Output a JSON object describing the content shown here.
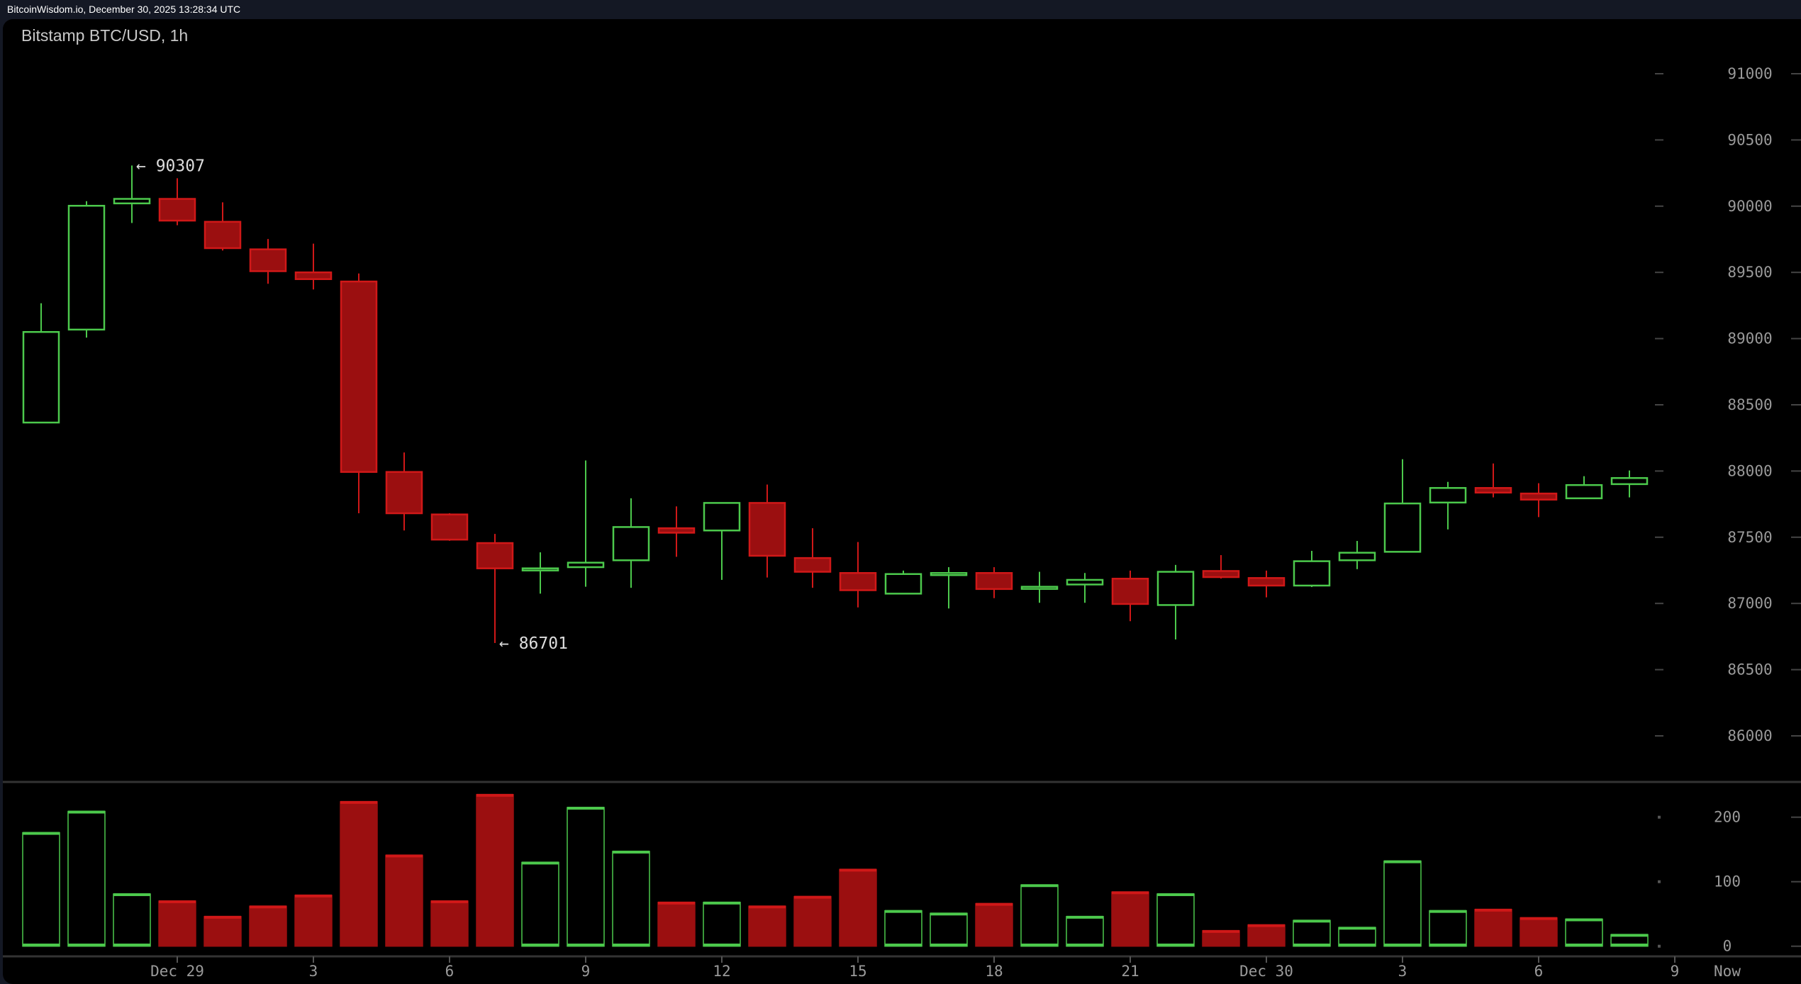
{
  "topbar": {
    "text": "BitcoinWisdom.io, December 30, 2025 13:28:34 UTC"
  },
  "chart_data": {
    "type": "candlestick",
    "title": "Bitstamp BTC/USD, 1h",
    "colors": {
      "up": "#4cc94c",
      "down": "#9b0f10",
      "down_border": "#d01818",
      "background": "#000000"
    },
    "ylim": [
      85800,
      91200
    ],
    "price_ticks": [
      86000,
      86500,
      87000,
      87500,
      88000,
      88500,
      89000,
      89500,
      90000,
      90500,
      91000
    ],
    "volume_ylim": [
      0,
      260
    ],
    "volume_ticks": [
      0,
      100,
      200
    ],
    "x_labels": [
      {
        "label": "Dec 29",
        "index": 3
      },
      {
        "label": "3",
        "index": 6
      },
      {
        "label": "6",
        "index": 9
      },
      {
        "label": "9",
        "index": 12
      },
      {
        "label": "12",
        "index": 15
      },
      {
        "label": "15",
        "index": 18
      },
      {
        "label": "18",
        "index": 21
      },
      {
        "label": "21",
        "index": 24
      },
      {
        "label": "Dec 30",
        "index": 27
      },
      {
        "label": "3",
        "index": 30
      },
      {
        "label": "6",
        "index": 33
      },
      {
        "label": "9",
        "index": 36
      }
    ],
    "now_label": "Now",
    "annotations": [
      {
        "text": "← 90307",
        "index": 2,
        "price": 90307
      },
      {
        "text": "← 86701",
        "index": 10,
        "price": 86701
      }
    ],
    "candles": [
      {
        "o": 88366,
        "h": 89267,
        "l": 88366,
        "c": 89050,
        "v": 176
      },
      {
        "o": 89068,
        "h": 90038,
        "l": 89007,
        "c": 90003,
        "v": 209
      },
      {
        "o": 90021,
        "h": 90307,
        "l": 89873,
        "c": 90055,
        "v": 81
      },
      {
        "o": 90055,
        "h": 90211,
        "l": 89856,
        "c": 89891,
        "v": 70
      },
      {
        "o": 89882,
        "h": 90029,
        "l": 89665,
        "c": 89683,
        "v": 46
      },
      {
        "o": 89674,
        "h": 89752,
        "l": 89414,
        "c": 89509,
        "v": 62
      },
      {
        "o": 89500,
        "h": 89717,
        "l": 89371,
        "c": 89449,
        "v": 79
      },
      {
        "o": 89431,
        "h": 89492,
        "l": 87681,
        "c": 87993,
        "v": 224
      },
      {
        "o": 87993,
        "h": 88140,
        "l": 87551,
        "c": 87681,
        "v": 141
      },
      {
        "o": 87672,
        "h": 87681,
        "l": 87473,
        "c": 87482,
        "v": 70
      },
      {
        "o": 87456,
        "h": 87525,
        "l": 86701,
        "c": 87265,
        "v": 235
      },
      {
        "o": 87260,
        "h": 87386,
        "l": 87074,
        "c": 87265,
        "v": 130
      },
      {
        "o": 87274,
        "h": 88080,
        "l": 87126,
        "c": 87308,
        "v": 215
      },
      {
        "o": 87326,
        "h": 87794,
        "l": 87118,
        "c": 87577,
        "v": 147
      },
      {
        "o": 87568,
        "h": 87733,
        "l": 87352,
        "c": 87534,
        "v": 68
      },
      {
        "o": 87551,
        "h": 87759,
        "l": 87178,
        "c": 87759,
        "v": 68
      },
      {
        "o": 87759,
        "h": 87898,
        "l": 87196,
        "c": 87360,
        "v": 62
      },
      {
        "o": 87343,
        "h": 87568,
        "l": 87118,
        "c": 87239,
        "v": 77
      },
      {
        "o": 87230,
        "h": 87464,
        "l": 86970,
        "c": 87100,
        "v": 119
      },
      {
        "o": 87074,
        "h": 87248,
        "l": 87074,
        "c": 87222,
        "v": 55
      },
      {
        "o": 87222,
        "h": 87274,
        "l": 86962,
        "c": 87230,
        "v": 51
      },
      {
        "o": 87230,
        "h": 87274,
        "l": 87040,
        "c": 87109,
        "v": 66
      },
      {
        "o": 87117,
        "h": 87239,
        "l": 87005,
        "c": 87126,
        "v": 95
      },
      {
        "o": 87143,
        "h": 87230,
        "l": 87005,
        "c": 87178,
        "v": 46
      },
      {
        "o": 87187,
        "h": 87248,
        "l": 86866,
        "c": 86996,
        "v": 84
      },
      {
        "o": 86988,
        "h": 87291,
        "l": 86728,
        "c": 87239,
        "v": 81
      },
      {
        "o": 87245,
        "h": 87365,
        "l": 87188,
        "c": 87199,
        "v": 24
      },
      {
        "o": 87192,
        "h": 87248,
        "l": 87046,
        "c": 87135,
        "v": 33
      },
      {
        "o": 87135,
        "h": 87397,
        "l": 87124,
        "c": 87319,
        "v": 40
      },
      {
        "o": 87326,
        "h": 87472,
        "l": 87259,
        "c": 87383,
        "v": 29
      },
      {
        "o": 87390,
        "h": 88089,
        "l": 87390,
        "c": 87755,
        "v": 132
      },
      {
        "o": 87762,
        "h": 87918,
        "l": 87559,
        "c": 87872,
        "v": 55
      },
      {
        "o": 87872,
        "h": 88057,
        "l": 87801,
        "c": 87837,
        "v": 57
      },
      {
        "o": 87830,
        "h": 87908,
        "l": 87652,
        "c": 87784,
        "v": 44
      },
      {
        "o": 87794,
        "h": 87961,
        "l": 87794,
        "c": 87894,
        "v": 42
      },
      {
        "o": 87901,
        "h": 88004,
        "l": 87801,
        "c": 87947,
        "v": 18
      }
    ]
  }
}
